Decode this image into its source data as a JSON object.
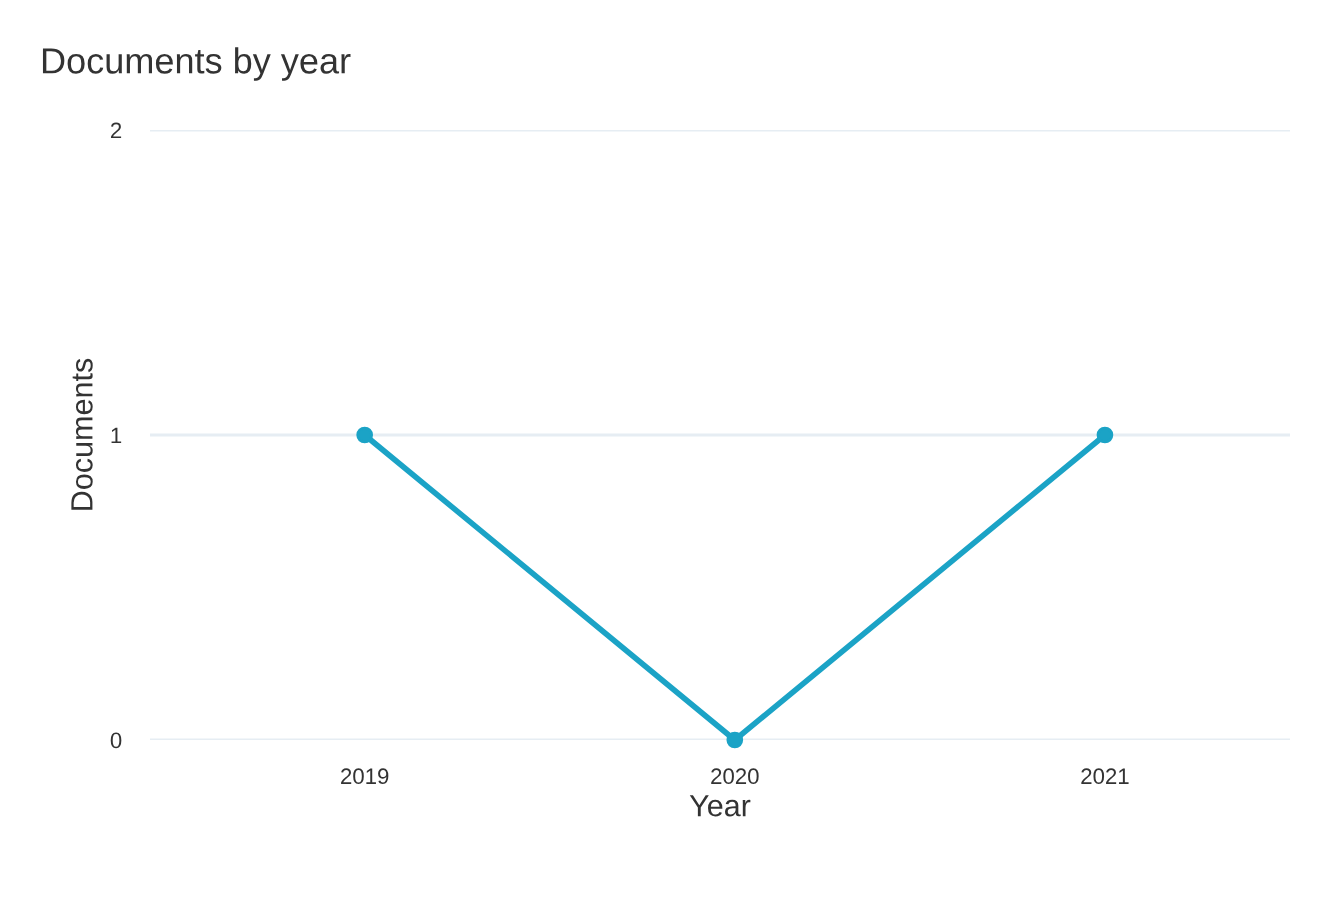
{
  "chart_data": {
    "type": "line",
    "title": "Documents by year",
    "xlabel": "Year",
    "ylabel": "Documents",
    "categories": [
      "2019",
      "2020",
      "2021"
    ],
    "series": [
      {
        "color": "#1ba3c6",
        "values": [
          1,
          0,
          1
        ]
      }
    ],
    "ylim": [
      0,
      2
    ],
    "yticks": [
      0,
      1,
      2
    ],
    "grid": "y",
    "marker": "circle",
    "line_style": "solid"
  }
}
